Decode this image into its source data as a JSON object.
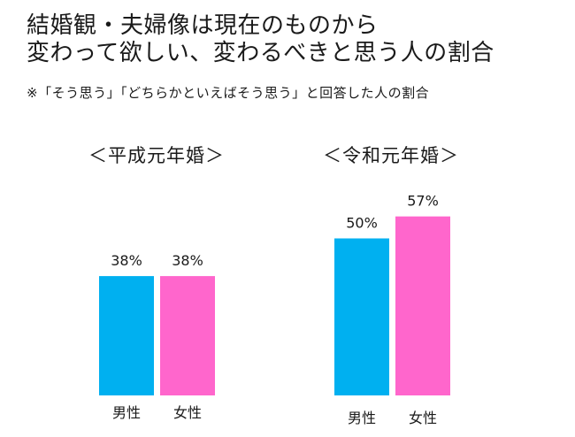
{
  "title_lines": [
    "結婚観・夫婦像は現在のものから",
    "変わって欲しい、変わるべきと思う人の割合"
  ],
  "note": "※「そう思う」「どちらかといえばそう思う」と回答した人の割合",
  "colors": {
    "male": "#00b0f0",
    "female": "#ff66cc",
    "text": "#1a1a1a"
  },
  "chart_data": {
    "type": "bar",
    "unit": "%",
    "ylim": [
      0,
      70
    ],
    "grid": false,
    "groups": [
      {
        "label": "＜平成元年婚＞",
        "bars": [
          {
            "category": "男性",
            "value": 38,
            "label": "38%",
            "color": "#00b0f0"
          },
          {
            "category": "女性",
            "value": 38,
            "label": "38%",
            "color": "#ff66cc"
          }
        ]
      },
      {
        "label": "＜令和元年婚＞",
        "bars": [
          {
            "category": "男性",
            "value": 50,
            "label": "50%",
            "color": "#00b0f0"
          },
          {
            "category": "女性",
            "value": 57,
            "label": "57%",
            "color": "#ff66cc"
          }
        ]
      }
    ]
  }
}
